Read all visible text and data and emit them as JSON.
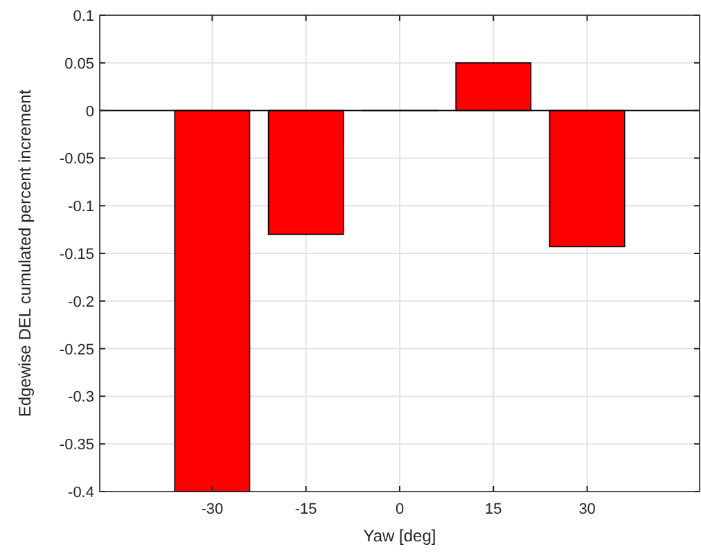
{
  "chart_data": {
    "type": "bar",
    "xlabel": "Yaw [deg]",
    "ylabel": "Edgewise DEL cumulated percent increment",
    "x": [
      -30,
      -15,
      0,
      15,
      30
    ],
    "values": [
      -0.4,
      -0.13,
      0,
      0.05,
      -0.143
    ],
    "color": "#ff0000",
    "xlim": [
      -48,
      48
    ],
    "xticks": [
      -30,
      -15,
      0,
      15,
      30
    ],
    "ylim": [
      -0.4,
      0.1
    ],
    "yticks": [
      -0.4,
      -0.35,
      -0.3,
      -0.25,
      -0.2,
      -0.15,
      -0.1,
      -0.05,
      0,
      0.05,
      0.1
    ],
    "grid": true
  }
}
